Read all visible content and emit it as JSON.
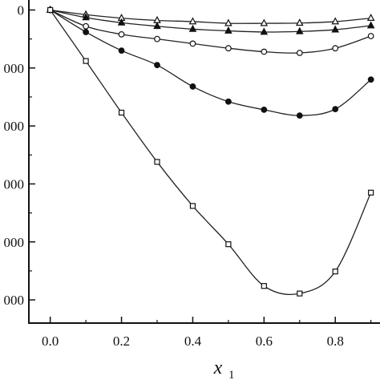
{
  "chart_data": {
    "type": "line",
    "title": "",
    "xlabel": "x",
    "xlabel_subscript": "1",
    "ylabel": "",
    "xlim": [
      -0.06,
      0.93
    ],
    "ylim": [
      -5400,
      200
    ],
    "grid": false,
    "legend": "none",
    "x_ticks": [
      0.0,
      0.2,
      0.4,
      0.6,
      0.8
    ],
    "x_tick_labels": [
      "0.0",
      "0.2",
      "0.4",
      "0.6",
      "0.8"
    ],
    "y_ticks": [
      0,
      -1000,
      -2000,
      -3000,
      -4000,
      -5000
    ],
    "y_tick_labels": [
      "0",
      "000",
      "000",
      "000",
      "000",
      "000"
    ],
    "series": [
      {
        "marker": "open-triangle",
        "x": [
          0.0,
          0.1,
          0.2,
          0.3,
          0.4,
          0.5,
          0.6,
          0.7,
          0.8,
          0.9
        ],
        "y": [
          0,
          -80,
          -140,
          -180,
          -200,
          -230,
          -230,
          -225,
          -200,
          -140
        ]
      },
      {
        "marker": "filled-triangle",
        "x": [
          0.0,
          0.1,
          0.2,
          0.3,
          0.4,
          0.5,
          0.6,
          0.7,
          0.8,
          0.9
        ],
        "y": [
          0,
          -130,
          -220,
          -280,
          -330,
          -360,
          -380,
          -370,
          -340,
          -270
        ]
      },
      {
        "marker": "open-circle",
        "x": [
          0.0,
          0.1,
          0.2,
          0.3,
          0.4,
          0.5,
          0.6,
          0.7,
          0.8,
          0.9
        ],
        "y": [
          0,
          -280,
          -420,
          -500,
          -580,
          -660,
          -720,
          -740,
          -660,
          -450
        ]
      },
      {
        "marker": "filled-circle",
        "x": [
          0.0,
          0.1,
          0.2,
          0.3,
          0.4,
          0.5,
          0.6,
          0.7,
          0.8,
          0.9
        ],
        "y": [
          0,
          -380,
          -700,
          -950,
          -1320,
          -1580,
          -1720,
          -1820,
          -1710,
          -1200
        ]
      },
      {
        "marker": "open-square",
        "x": [
          0.0,
          0.1,
          0.2,
          0.3,
          0.4,
          0.5,
          0.6,
          0.7,
          0.8,
          0.9
        ],
        "y": [
          0,
          -880,
          -1770,
          -2620,
          -3380,
          -4040,
          -4760,
          -4890,
          -4510,
          -3150
        ]
      }
    ],
    "colors": {
      "line": "#222222",
      "axis": "#111111"
    }
  }
}
